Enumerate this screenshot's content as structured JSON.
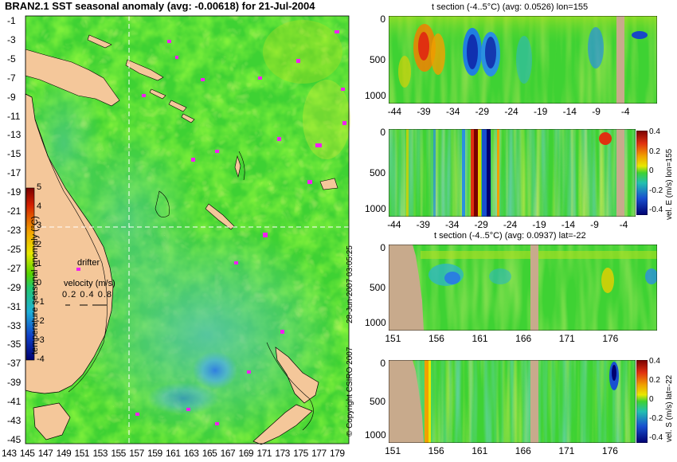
{
  "map": {
    "title": "BRAN2.1 SST seasonal anomaly (avg: -0.00618) for 21-Jul-2004",
    "lat_labels": [
      "-1",
      "-3",
      "-5",
      "-7",
      "-9",
      "-11",
      "-13",
      "-15",
      "-17",
      "-19",
      "-21",
      "-23",
      "-25",
      "-27",
      "-29",
      "-31",
      "-33",
      "-35",
      "-37",
      "-39",
      "-41",
      "-43",
      "-45"
    ],
    "lon_labels": [
      "143",
      "145",
      "147",
      "149",
      "151",
      "153",
      "155",
      "157",
      "159",
      "161",
      "163",
      "165",
      "167",
      "169",
      "171",
      "173",
      "175",
      "177",
      "179"
    ],
    "colorbar_ticks": [
      "5",
      "4",
      "3",
      "2",
      "1",
      "0",
      "-1",
      "-2",
      "-3",
      "-4"
    ],
    "colorbar_label": "temperature seasonal anomaly (°C)",
    "drifter_label": "drifter",
    "velocity_label": "velocity (m/s)",
    "velocity_scale": "0.2 0.4 0.8",
    "copyright": "© Copyright CSIRO 2007",
    "timestamp": "28-Jun-2007 03:05:25",
    "crosshair_lon": 155,
    "crosshair_lat": -22
  },
  "panels": [
    {
      "title": "t section (-4..5°C) (avg: 0.0526) lon=155",
      "x_ticks": [
        "-44",
        "-39",
        "-34",
        "-29",
        "-24",
        "-19",
        "-14",
        "-9",
        "-4"
      ],
      "y_ticks": [
        "0",
        "500",
        "1000"
      ]
    },
    {
      "title": "",
      "x_ticks": [
        "-44",
        "-39",
        "-34",
        "-29",
        "-24",
        "-19",
        "-14",
        "-9",
        "-4"
      ],
      "y_ticks": [
        "0",
        "500",
        "1000"
      ],
      "cb_label": "vel. E (m/s) lon=155",
      "cb_ticks": [
        "0.4",
        "0.2",
        "0",
        "-0.2",
        "-0.4"
      ]
    },
    {
      "title": "t section (-4..5°C) (avg: 0.0937) lat=-22",
      "x_ticks": [
        "151",
        "156",
        "161",
        "166",
        "171",
        "176"
      ],
      "y_ticks": [
        "0",
        "500",
        "1000"
      ]
    },
    {
      "title": "",
      "x_ticks": [
        "151",
        "156",
        "161",
        "166",
        "171",
        "176"
      ],
      "y_ticks": [
        "0",
        "500",
        "1000"
      ],
      "cb_label": "vel. S (m/s) lat=-22",
      "cb_ticks": [
        "0.4",
        "0.2",
        "0",
        "-0.2",
        "-0.4"
      ]
    }
  ]
}
